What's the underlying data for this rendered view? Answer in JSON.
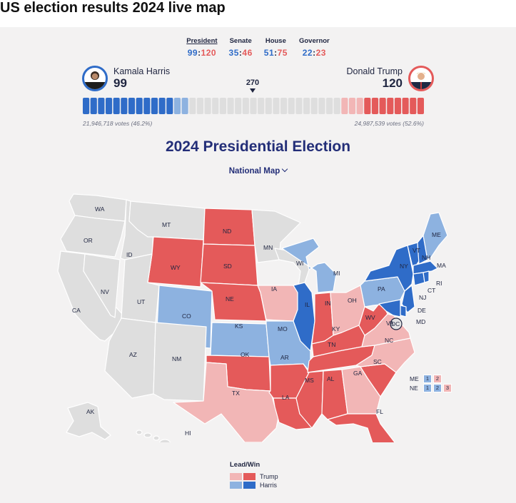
{
  "page_title": "US election results 2024 live map",
  "tabs": [
    {
      "label": "President",
      "dem": "99",
      "rep": "120",
      "active": true
    },
    {
      "label": "Senate",
      "dem": "35",
      "rep": "46",
      "active": false
    },
    {
      "label": "House",
      "dem": "51",
      "rep": "75",
      "active": false
    },
    {
      "label": "Governor",
      "dem": "22",
      "rep": "23",
      "active": false
    }
  ],
  "candidates": {
    "dem": {
      "name": "Kamala Harris",
      "electoral": "99",
      "popular": "21,946,718 votes (46.2%)"
    },
    "rep": {
      "name": "Donald Trump",
      "electoral": "120",
      "popular": "24,987,539 votes (52.6%)"
    }
  },
  "threshold": "270",
  "heading": "2024 Presidential Election",
  "map_selector": "National Map",
  "colors": {
    "dem_win": "#2f6cc8",
    "dem_lead": "#8db2e0",
    "rep_win": "#e45a5a",
    "rep_lead": "#f2b6b6",
    "uncalled": "#dedede"
  },
  "states": {
    "WA": "uncalled",
    "OR": "uncalled",
    "CA": "uncalled",
    "NV": "uncalled",
    "ID": "uncalled",
    "MT": "uncalled",
    "UT": "uncalled",
    "AZ": "uncalled",
    "NM": "uncalled",
    "MN": "uncalled",
    "WI": "uncalled",
    "AK": "uncalled",
    "HI": "uncalled",
    "WY": "rep_win",
    "ND": "rep_win",
    "SD": "rep_win",
    "NE": "rep_win",
    "OK": "rep_win",
    "AR": "rep_win",
    "LA": "rep_win",
    "MS": "rep_win",
    "AL": "rep_win",
    "TN": "rep_win",
    "KY": "rep_win",
    "IN": "rep_win",
    "WV": "rep_win",
    "SC": "rep_win",
    "FL": "rep_win",
    "TX": "rep_lead",
    "IA": "rep_lead",
    "OH": "rep_lead",
    "GA": "rep_lead",
    "NC": "rep_lead",
    "CO": "dem_lead",
    "KS": "dem_lead",
    "MO": "dem_lead",
    "MI": "dem_lead",
    "PA": "dem_lead",
    "ME": "dem_lead",
    "IL": "dem_win",
    "NY": "dem_win",
    "VT": "dem_win",
    "NH": "dem_win",
    "MA": "dem_win",
    "RI": "dem_win",
    "CT": "dem_win",
    "NJ": "dem_win",
    "DE": "dem_win",
    "MD": "dem_win",
    "VA": "rep_lead",
    "DC": "dem_win"
  },
  "split_states": [
    {
      "name": "ME",
      "districts": [
        {
          "label": "1",
          "party": "dem"
        },
        {
          "label": "2",
          "party": "rep"
        }
      ]
    },
    {
      "name": "NE",
      "districts": [
        {
          "label": "1",
          "party": "dem"
        },
        {
          "label": "2",
          "party": "dem"
        },
        {
          "label": "3",
          "party": "rep"
        }
      ]
    }
  ],
  "legend": {
    "title": "Lead/Win",
    "trump": "Trump",
    "harris": "Harris"
  },
  "bar": {
    "dem_win": 12,
    "dem_lead": 2,
    "uncalled": 20,
    "rep_lead": 3,
    "rep_win": 8
  }
}
